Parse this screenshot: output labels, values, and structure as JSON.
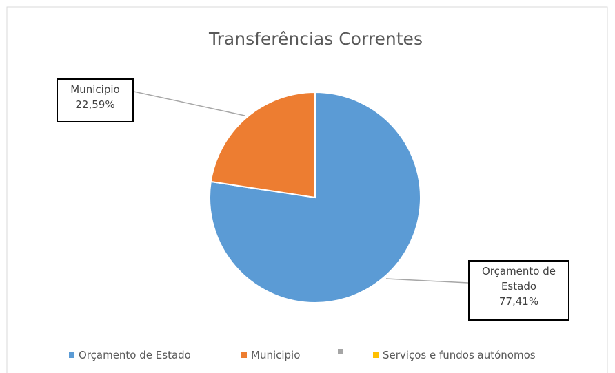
{
  "chart_data": {
    "type": "pie",
    "title": "Transferências Correntes",
    "categories": [
      "Orçamento de Estado",
      "Municipio",
      null,
      "Serviços e fundos autónomos"
    ],
    "values": [
      77.41,
      22.59,
      0,
      0
    ],
    "value_labels": [
      "77,41%",
      "22,59%",
      null,
      null
    ],
    "colors": [
      "#5b9bd5",
      "#ed7d31",
      "#a5a5a5",
      "#ffc000"
    ],
    "legend": "bottom"
  }
}
